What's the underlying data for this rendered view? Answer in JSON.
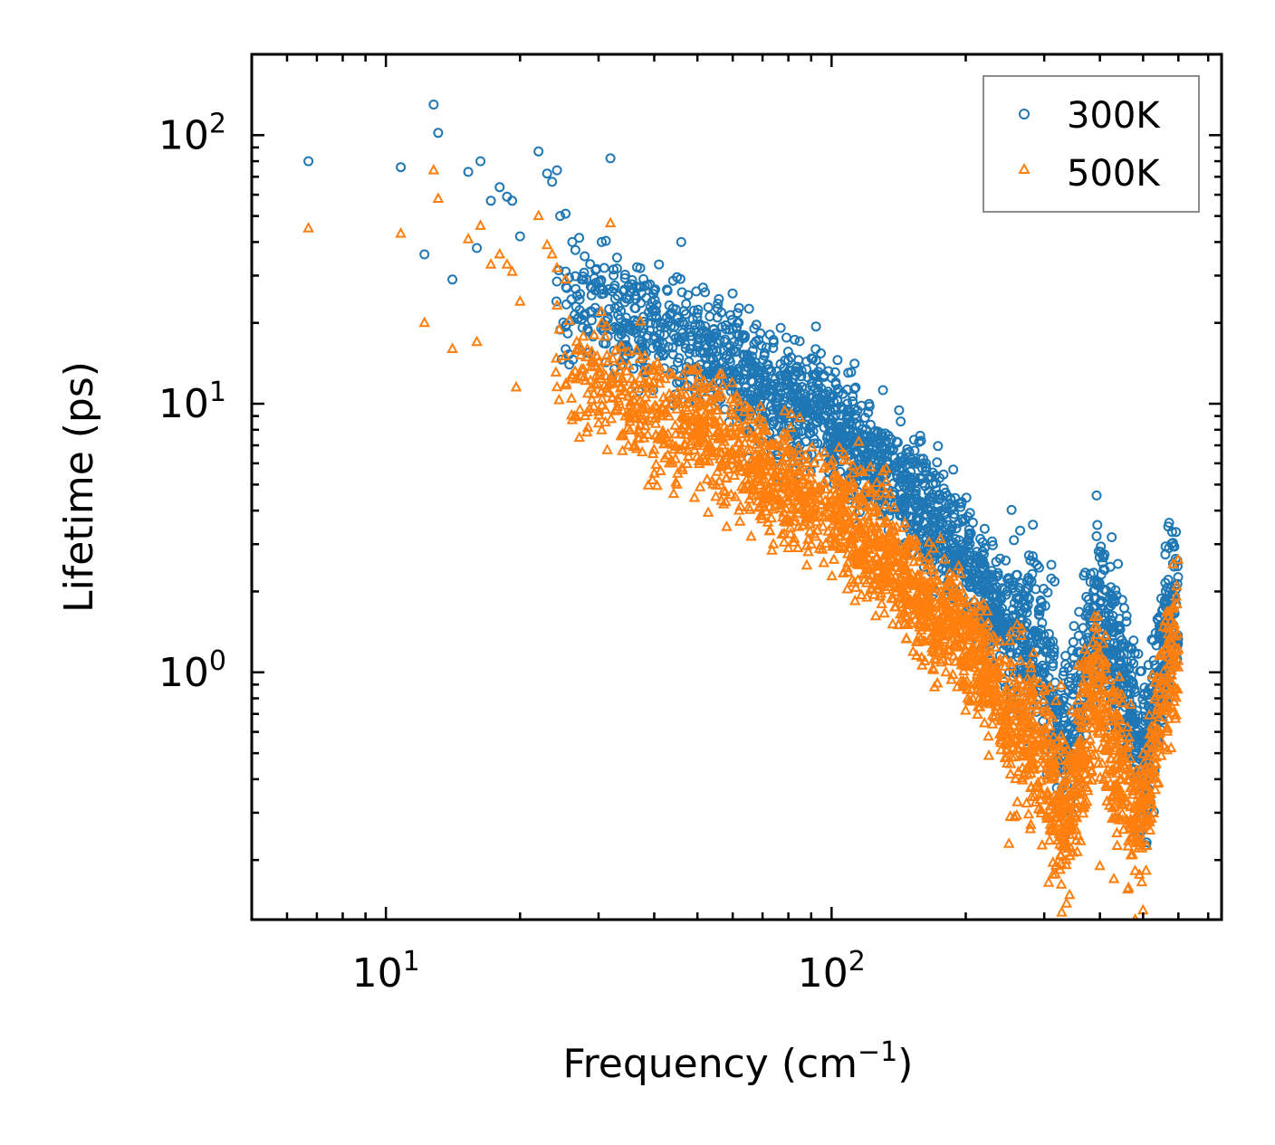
{
  "chart_data": {
    "type": "scatter",
    "xscale": "log",
    "yscale": "log",
    "xlim": [
      5,
      750
    ],
    "ylim": [
      0.12,
      200
    ],
    "xlabel": "Frequency (cm",
    "xlabel_sup": "−1",
    "xlabel_end": ")",
    "ylabel": "Lifetime (ps)",
    "x_ticks": [
      {
        "value": 10,
        "base": "10",
        "exp": "1"
      },
      {
        "value": 100,
        "base": "10",
        "exp": "2"
      }
    ],
    "y_ticks": [
      {
        "value": 1,
        "base": "10",
        "exp": "0"
      },
      {
        "value": 10,
        "base": "10",
        "exp": "1"
      },
      {
        "value": 100,
        "base": "10",
        "exp": "2"
      }
    ],
    "legend_position": "top-right",
    "series": [
      {
        "name": "300K",
        "marker": "circle",
        "color": "#1f77b4",
        "sample_points": [
          [
            6.7,
            80
          ],
          [
            10.8,
            76
          ],
          [
            12.2,
            36
          ],
          [
            12.8,
            130
          ],
          [
            13.1,
            102
          ],
          [
            14.1,
            29
          ],
          [
            15.3,
            73
          ],
          [
            16,
            38
          ],
          [
            16.3,
            80
          ],
          [
            17.2,
            57
          ],
          [
            18,
            64
          ],
          [
            18.7,
            59
          ],
          [
            19.2,
            57
          ],
          [
            20,
            42
          ],
          [
            22,
            87
          ],
          [
            23,
            72
          ],
          [
            23.6,
            67
          ],
          [
            24.2,
            74
          ],
          [
            24.6,
            50
          ],
          [
            25.3,
            51
          ],
          [
            26.2,
            40
          ],
          [
            27.5,
            29
          ],
          [
            29,
            27
          ],
          [
            30.5,
            40
          ],
          [
            31.9,
            82
          ],
          [
            33,
            35
          ],
          [
            35.3,
            26
          ],
          [
            37.2,
            32
          ],
          [
            41,
            33
          ],
          [
            46,
            40
          ],
          [
            52,
            26
          ],
          [
            60,
            19
          ],
          [
            72,
            14
          ],
          [
            80,
            14.5
          ]
        ],
        "trend": [
          [
            24,
            25
          ],
          [
            30,
            22
          ],
          [
            40,
            19
          ],
          [
            50,
            16
          ],
          [
            60,
            13.5
          ],
          [
            70,
            11
          ],
          [
            80,
            10
          ],
          [
            90,
            9.5
          ],
          [
            100,
            8.5
          ],
          [
            115,
            7
          ],
          [
            130,
            6
          ],
          [
            150,
            4.5
          ],
          [
            170,
            3.5
          ],
          [
            190,
            3.0
          ],
          [
            210,
            2.3
          ],
          [
            230,
            1.8
          ],
          [
            250,
            1.5
          ],
          [
            270,
            1.35
          ],
          [
            290,
            1.2
          ],
          [
            310,
            0.9
          ],
          [
            330,
            0.6
          ],
          [
            350,
            0.7
          ],
          [
            370,
            1.0
          ],
          [
            390,
            1.7
          ],
          [
            410,
            1.6
          ],
          [
            430,
            1.2
          ],
          [
            450,
            0.95
          ],
          [
            470,
            0.8
          ],
          [
            490,
            0.55
          ],
          [
            510,
            0.5
          ],
          [
            530,
            0.8
          ],
          [
            550,
            1.2
          ],
          [
            575,
            1.6
          ],
          [
            600,
            1.9
          ]
        ]
      },
      {
        "name": "500K",
        "marker": "triangle",
        "color": "#ff7f0e",
        "sample_points": [
          [
            6.7,
            45
          ],
          [
            10.8,
            43
          ],
          [
            12.2,
            20
          ],
          [
            12.8,
            74
          ],
          [
            13.1,
            58
          ],
          [
            14.1,
            16
          ],
          [
            15.3,
            41
          ],
          [
            16,
            17
          ],
          [
            16.3,
            46
          ],
          [
            17.2,
            33
          ],
          [
            18,
            36
          ],
          [
            18.7,
            33
          ],
          [
            19.2,
            31
          ],
          [
            19.6,
            11.5
          ],
          [
            20,
            24
          ],
          [
            22,
            50
          ],
          [
            23,
            39
          ],
          [
            23.6,
            36
          ],
          [
            24.2,
            32
          ],
          [
            25.3,
            29
          ],
          [
            26.2,
            12.5
          ],
          [
            28,
            9
          ],
          [
            30.5,
            20
          ],
          [
            31.9,
            47
          ],
          [
            35,
            7
          ],
          [
            40,
            5.5
          ],
          [
            45,
            5
          ],
          [
            55,
            4.5
          ],
          [
            62,
            4
          ],
          [
            66,
            3.2
          ],
          [
            74,
            3
          ],
          [
            80,
            2.9
          ],
          [
            88,
            2.5
          ],
          [
            120,
            1.9
          ],
          [
            148,
            1.5
          ],
          [
            155,
            1.3
          ],
          [
            160,
            1.8
          ],
          [
            250,
            0.23
          ],
          [
            400,
            0.19
          ],
          [
            430,
            0.17
          ],
          [
            480,
            0.12
          ],
          [
            500,
            0.13
          ]
        ],
        "trend": [
          [
            24,
            15
          ],
          [
            30,
            12
          ],
          [
            40,
            9
          ],
          [
            50,
            8
          ],
          [
            60,
            6.8
          ],
          [
            70,
            5.6
          ],
          [
            80,
            5
          ],
          [
            90,
            4.5
          ],
          [
            100,
            4.0
          ],
          [
            115,
            3.4
          ],
          [
            130,
            2.9
          ],
          [
            150,
            2.2
          ],
          [
            170,
            1.6
          ],
          [
            190,
            1.55
          ],
          [
            210,
            1.2
          ],
          [
            230,
            0.9
          ],
          [
            250,
            0.6
          ],
          [
            270,
            0.7
          ],
          [
            290,
            0.55
          ],
          [
            310,
            0.38
          ],
          [
            330,
            0.28
          ],
          [
            350,
            0.4
          ],
          [
            370,
            0.55
          ],
          [
            390,
            0.9
          ],
          [
            410,
            0.7
          ],
          [
            430,
            0.5
          ],
          [
            450,
            0.42
          ],
          [
            470,
            0.35
          ],
          [
            490,
            0.25
          ],
          [
            510,
            0.3
          ],
          [
            530,
            0.55
          ],
          [
            550,
            0.8
          ],
          [
            575,
            1.05
          ],
          [
            600,
            1.2
          ]
        ]
      }
    ]
  }
}
